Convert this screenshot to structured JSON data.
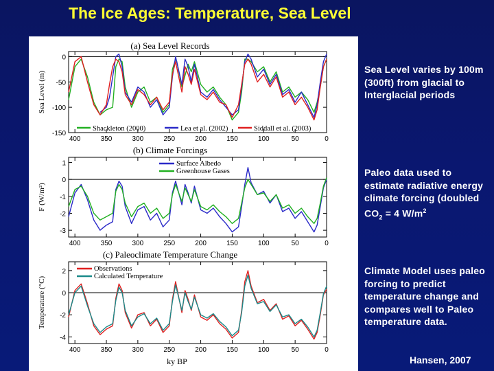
{
  "slide": {
    "title": "The Ice Ages: Temperature, Sea Level",
    "credit": "Hansen, 2007"
  },
  "captions": {
    "sea_level": "Sea Level varies by 100m (300ft) from glacial to Interglacial periods",
    "forcing_pre": "Paleo data used to estimate radiative energy climate forcing (doubled CO",
    "forcing_sub": "2",
    "forcing_mid": " = 4 W/m",
    "forcing_sup": "2",
    "model": "Climate Model uses paleo forcing to predict temperature change and compares well to Paleo temperature data."
  },
  "colors": {
    "background": "#0a1770",
    "title": "#ffff33",
    "shackleton": "#22b022",
    "lea": "#2a2ac8",
    "siddall": "#e02020",
    "albedo": "#2a2ac8",
    "ghg": "#22b022",
    "observations": "#e02020",
    "calculated": "#1a8a8a"
  },
  "chart_data": [
    {
      "type": "line",
      "title": "(a) Sea Level Records",
      "ylabel": "Sea Level (m)",
      "xlabel": "",
      "xlim": [
        410,
        0
      ],
      "ylim": [
        -150,
        10
      ],
      "yticks": [
        0,
        -50,
        -100,
        -150
      ],
      "xticks": [
        400,
        350,
        300,
        250,
        200,
        150,
        100,
        50,
        0
      ],
      "legend": [
        "Shackleton (2000)",
        "Lea et al. (2002)",
        "Siddall et al. (2003)"
      ],
      "legend_placement": "bottom",
      "series": [
        {
          "name": "Shackleton (2000)",
          "x": [
            410,
            400,
            390,
            380,
            370,
            360,
            350,
            340,
            335,
            330,
            325,
            320,
            310,
            300,
            290,
            280,
            270,
            260,
            250,
            245,
            240,
            238,
            230,
            220,
            215,
            210,
            200,
            190,
            180,
            170,
            160,
            150,
            140,
            135,
            130,
            125,
            120,
            110,
            100,
            90,
            80,
            70,
            60,
            50,
            40,
            30,
            20,
            15,
            10,
            5,
            0
          ],
          "y": [
            -85,
            -20,
            -5,
            -40,
            -90,
            -115,
            -105,
            -100,
            -20,
            -5,
            -10,
            -60,
            -100,
            -70,
            -60,
            -90,
            -80,
            -110,
            -95,
            -25,
            -5,
            -10,
            -60,
            -15,
            -30,
            -10,
            -55,
            -70,
            -60,
            -80,
            -95,
            -125,
            -110,
            -70,
            -5,
            -5,
            -10,
            -30,
            -20,
            -50,
            -30,
            -70,
            -60,
            -80,
            -70,
            -85,
            -110,
            -90,
            -60,
            -20,
            -5
          ]
        },
        {
          "name": "Lea et al. (2002)",
          "x": [
            360,
            350,
            345,
            340,
            335,
            330,
            325,
            320,
            310,
            300,
            290,
            280,
            270,
            260,
            250,
            245,
            240,
            230,
            225,
            220,
            215,
            210,
            200,
            190,
            180,
            170,
            160,
            150,
            140,
            135,
            130,
            125,
            120,
            110,
            100,
            90,
            80,
            70,
            60,
            50,
            40,
            30,
            20,
            15,
            10,
            5,
            0
          ],
          "y": [
            -110,
            -100,
            -80,
            -40,
            0,
            5,
            -20,
            -70,
            -90,
            -60,
            -70,
            -100,
            -85,
            -115,
            -100,
            -40,
            0,
            -55,
            -5,
            -20,
            -50,
            -15,
            -70,
            -80,
            -65,
            -85,
            -100,
            -115,
            -105,
            -60,
            -10,
            5,
            -5,
            -40,
            -25,
            -55,
            -35,
            -75,
            -65,
            -90,
            -70,
            -95,
            -120,
            -95,
            -50,
            -10,
            5
          ]
        },
        {
          "name": "Siddall et al. (2003)",
          "x": [
            410,
            400,
            390,
            380,
            370,
            360,
            350,
            345,
            340,
            335,
            330,
            325,
            320,
            310,
            300,
            290,
            280,
            270,
            260,
            250,
            245,
            240,
            230,
            225,
            220,
            215,
            210,
            200,
            190,
            180,
            170,
            160,
            150,
            140,
            135,
            130,
            125,
            120,
            110,
            100,
            90,
            80,
            70,
            60,
            50,
            40,
            30,
            20,
            15,
            10,
            5,
            0
          ],
          "y": [
            -70,
            -10,
            0,
            -50,
            -95,
            -115,
            -95,
            -55,
            -20,
            -5,
            -10,
            -30,
            -75,
            -95,
            -65,
            -75,
            -95,
            -80,
            -105,
            -90,
            -35,
            -10,
            -70,
            -20,
            -35,
            -55,
            -25,
            -75,
            -85,
            -70,
            -90,
            -95,
            -120,
            -95,
            -55,
            -15,
            -5,
            -15,
            -50,
            -35,
            -60,
            -40,
            -80,
            -70,
            -95,
            -80,
            -100,
            -125,
            -105,
            -60,
            -20,
            -5
          ]
        }
      ]
    },
    {
      "type": "line",
      "title": "(b) Climate Forcings",
      "ylabel": "F (W/m²)",
      "xlabel": "",
      "xlim": [
        410,
        0
      ],
      "ylim": [
        -3.4,
        1.3
      ],
      "yticks": [
        1,
        0,
        -1,
        -2,
        -3
      ],
      "xticks": [
        400,
        350,
        300,
        250,
        200,
        150,
        100,
        50,
        0
      ],
      "legend": [
        "Surface Albedo",
        "Greenhouse Gases"
      ],
      "legend_placement": "top-center",
      "series": [
        {
          "name": "Surface Albedo",
          "x": [
            410,
            400,
            390,
            380,
            370,
            360,
            350,
            340,
            335,
            330,
            325,
            320,
            310,
            300,
            290,
            280,
            270,
            260,
            250,
            245,
            240,
            230,
            225,
            220,
            215,
            210,
            200,
            190,
            180,
            170,
            160,
            150,
            140,
            135,
            130,
            125,
            120,
            110,
            100,
            90,
            80,
            70,
            60,
            50,
            40,
            30,
            20,
            15,
            10,
            5,
            0
          ],
          "y": [
            -2.2,
            -0.8,
            -0.3,
            -1.2,
            -2.4,
            -3.0,
            -2.7,
            -2.5,
            -0.6,
            -0.1,
            -0.4,
            -1.6,
            -2.6,
            -1.8,
            -1.6,
            -2.4,
            -2.0,
            -2.8,
            -2.4,
            -0.8,
            -0.1,
            -1.5,
            -0.3,
            -0.8,
            -1.4,
            -0.4,
            -1.8,
            -2.0,
            -1.7,
            -2.2,
            -2.6,
            -3.1,
            -2.8,
            -1.6,
            -0.3,
            0.7,
            -0.2,
            -0.9,
            -0.7,
            -1.4,
            -0.9,
            -1.9,
            -1.7,
            -2.3,
            -1.9,
            -2.5,
            -3.1,
            -2.7,
            -1.6,
            -0.5,
            0.0
          ]
        },
        {
          "name": "Greenhouse Gases",
          "x": [
            410,
            400,
            390,
            380,
            370,
            360,
            350,
            340,
            335,
            330,
            325,
            320,
            310,
            300,
            290,
            280,
            270,
            260,
            250,
            245,
            240,
            230,
            225,
            220,
            215,
            210,
            200,
            190,
            180,
            170,
            160,
            150,
            140,
            135,
            130,
            125,
            120,
            110,
            100,
            90,
            80,
            70,
            60,
            50,
            40,
            30,
            20,
            15,
            10,
            5,
            0
          ],
          "y": [
            -1.6,
            -0.6,
            -0.4,
            -1.0,
            -2.0,
            -2.4,
            -2.2,
            -2.0,
            -0.7,
            -0.3,
            -0.6,
            -1.4,
            -2.2,
            -1.6,
            -1.4,
            -2.0,
            -1.7,
            -2.3,
            -2.0,
            -0.9,
            -0.3,
            -1.3,
            -0.5,
            -0.9,
            -1.3,
            -0.6,
            -1.6,
            -1.8,
            -1.5,
            -1.9,
            -2.2,
            -2.6,
            -2.3,
            -1.4,
            -0.5,
            0.0,
            -0.3,
            -0.9,
            -0.8,
            -1.3,
            -0.9,
            -1.7,
            -1.5,
            -2.0,
            -1.7,
            -2.2,
            -2.6,
            -2.3,
            -1.4,
            -0.4,
            0.1
          ]
        }
      ]
    },
    {
      "type": "line",
      "title": "(c) Paleoclimate Temperature Change",
      "ylabel": "Temperature (°C)",
      "xlabel": "ky BP",
      "xlim": [
        410,
        0
      ],
      "ylim": [
        -4.6,
        2.8
      ],
      "yticks": [
        2,
        0,
        -2,
        -4
      ],
      "xticks": [
        400,
        350,
        300,
        250,
        200,
        150,
        100,
        50,
        0
      ],
      "legend": [
        "Observations",
        "Calculated Temperature"
      ],
      "legend_placement": "top-left",
      "series": [
        {
          "name": "Observations",
          "x": [
            410,
            400,
            390,
            380,
            370,
            360,
            350,
            340,
            335,
            330,
            325,
            320,
            310,
            300,
            290,
            280,
            270,
            260,
            250,
            245,
            240,
            230,
            225,
            220,
            215,
            210,
            200,
            190,
            180,
            170,
            160,
            150,
            140,
            135,
            130,
            125,
            120,
            110,
            100,
            90,
            80,
            70,
            60,
            50,
            40,
            30,
            20,
            15,
            10,
            5,
            0
          ],
          "y": [
            -2.2,
            0.2,
            0.8,
            -1.0,
            -3.0,
            -3.8,
            -3.3,
            -3.0,
            -0.5,
            0.8,
            0.2,
            -1.8,
            -3.2,
            -2.0,
            -1.8,
            -3.0,
            -2.4,
            -3.6,
            -3.0,
            -0.6,
            1.0,
            -1.8,
            0.2,
            -0.6,
            -1.6,
            -0.2,
            -2.2,
            -2.5,
            -2.0,
            -2.8,
            -3.3,
            -4.1,
            -3.6,
            -1.6,
            1.0,
            2.0,
            0.6,
            -0.9,
            -0.6,
            -1.6,
            -1.0,
            -2.4,
            -2.1,
            -3.0,
            -2.5,
            -3.3,
            -4.2,
            -3.6,
            -2.0,
            -0.2,
            0.3
          ]
        },
        {
          "name": "Calculated Temperature",
          "x": [
            410,
            400,
            390,
            380,
            370,
            360,
            350,
            340,
            335,
            330,
            325,
            320,
            310,
            300,
            290,
            280,
            270,
            260,
            250,
            245,
            240,
            230,
            225,
            220,
            215,
            210,
            200,
            190,
            180,
            170,
            160,
            150,
            140,
            135,
            130,
            125,
            120,
            110,
            100,
            90,
            80,
            70,
            60,
            50,
            40,
            30,
            20,
            15,
            10,
            5,
            0
          ],
          "y": [
            -2.0,
            0.0,
            0.6,
            -1.2,
            -2.8,
            -3.6,
            -3.1,
            -2.8,
            -0.7,
            0.5,
            0.0,
            -1.6,
            -3.0,
            -2.2,
            -1.9,
            -2.8,
            -2.3,
            -3.4,
            -2.8,
            -0.8,
            0.7,
            -1.6,
            0.0,
            -0.8,
            -1.5,
            -0.4,
            -2.0,
            -2.3,
            -1.9,
            -2.6,
            -3.1,
            -3.9,
            -3.4,
            -1.8,
            0.6,
            1.6,
            0.4,
            -1.0,
            -0.8,
            -1.7,
            -1.1,
            -2.2,
            -2.0,
            -2.8,
            -2.4,
            -3.1,
            -4.0,
            -3.4,
            -1.8,
            -0.1,
            0.6
          ]
        }
      ]
    }
  ]
}
